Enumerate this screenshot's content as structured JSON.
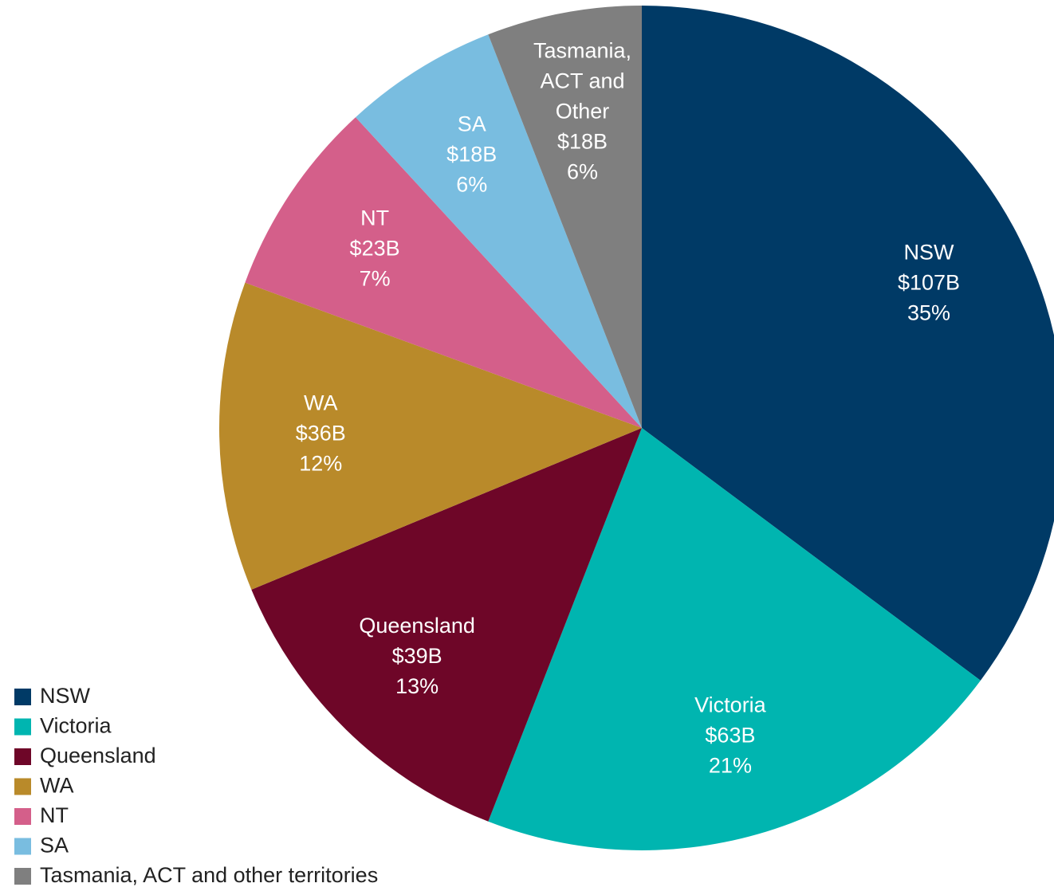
{
  "chart_data": {
    "type": "pie",
    "categories": [
      "NSW",
      "Victoria",
      "Queensland",
      "WA",
      "NT",
      "SA",
      "Tasmania, ACT and other territories"
    ],
    "slice_labels": [
      [
        "NSW"
      ],
      [
        "Victoria"
      ],
      [
        "Queensland"
      ],
      [
        "WA"
      ],
      [
        "NT"
      ],
      [
        "SA"
      ],
      [
        "Tasmania,",
        "ACT and",
        "Other"
      ]
    ],
    "values": [
      107,
      63,
      39,
      36,
      23,
      18,
      18
    ],
    "value_labels": [
      "$107B",
      "$63B",
      "$39B",
      "$36B",
      "$23B",
      "$18B",
      "$18B"
    ],
    "percents": [
      35,
      21,
      13,
      12,
      7,
      6,
      6
    ],
    "percent_labels": [
      "35%",
      "21%",
      "13%",
      "12%",
      "7%",
      "6%",
      "6%"
    ],
    "colors": [
      "#003a66",
      "#00b5b0",
      "#6e0628",
      "#b98a2a",
      "#d45f8a",
      "#79bde0",
      "#7f7f7f"
    ],
    "legend": "bottom-left"
  }
}
